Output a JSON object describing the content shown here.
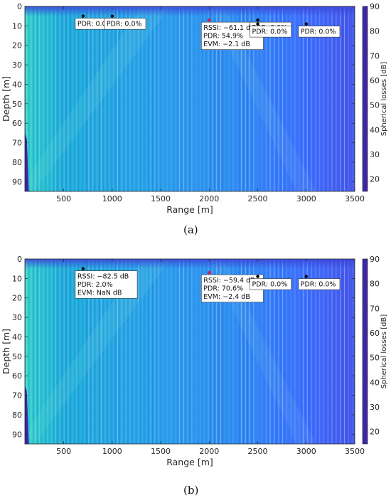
{
  "colormap": [
    "#3e26a8",
    "#4746eb",
    "#3e70ff",
    "#2d96f1",
    "#1eaed9",
    "#13beb5",
    "#45c88d",
    "#8fca5c",
    "#d2bb3a",
    "#fcce2e",
    "#f8fa0d"
  ],
  "marker_colors": {
    "normal": "#000000",
    "highlighted": "#d81b38"
  },
  "chart_data": [
    {
      "type": "heatmap",
      "panel_caption": "(a)",
      "xlabel": "Range [m]",
      "ylabel": "Depth [m]",
      "colorbar_label": "Spherical losses [dB]",
      "xlim": [
        100,
        3500
      ],
      "ylim": [
        0,
        95
      ],
      "y_reversed": true,
      "clim": [
        15,
        90
      ],
      "xticks": [
        500,
        1000,
        1500,
        2000,
        2500,
        3000,
        3500
      ],
      "yticks": [
        0,
        10,
        20,
        30,
        40,
        50,
        60,
        70,
        80,
        90
      ],
      "cticks": [
        20,
        30,
        40,
        50,
        60,
        70,
        80,
        90
      ],
      "grid": false,
      "points": [
        {
          "x": 700,
          "y": 5,
          "highlight": false,
          "label_lines": [
            "PDR: 0.0%"
          ]
        },
        {
          "x": 1000,
          "y": 5,
          "highlight": false,
          "label_lines": [
            "PDR: 0.0%"
          ]
        },
        {
          "x": 2000,
          "y": 7,
          "highlight": true,
          "label_lines": [
            "RSSI: −61.1 dB",
            "PDR: 54.9%",
            "EVM: −2.1 dB"
          ]
        },
        {
          "x": 2500,
          "y": 7,
          "highlight": false,
          "label_lines": [
            "PDR: 0.0%"
          ]
        },
        {
          "x": 2500,
          "y": 9,
          "highlight": false,
          "label_lines": [
            "PDR: 0.0%"
          ]
        },
        {
          "x": 3000,
          "y": 9,
          "highlight": false,
          "label_lines": [
            "PDR: 0.0%"
          ]
        }
      ]
    },
    {
      "type": "heatmap",
      "panel_caption": "(b)",
      "xlabel": "Range [m]",
      "ylabel": "Depth [m]",
      "colorbar_label": "Spherical losses [dB]",
      "xlim": [
        100,
        3500
      ],
      "ylim": [
        0,
        95
      ],
      "y_reversed": true,
      "clim": [
        15,
        90
      ],
      "xticks": [
        500,
        1000,
        1500,
        2000,
        2500,
        3000,
        3500
      ],
      "yticks": [
        0,
        10,
        20,
        30,
        40,
        50,
        60,
        70,
        80,
        90
      ],
      "cticks": [
        20,
        30,
        40,
        50,
        60,
        70,
        80,
        90
      ],
      "grid": false,
      "points": [
        {
          "x": 700,
          "y": 5,
          "highlight": false,
          "label_lines": [
            "RSSI: −82.5 dB",
            "PDR: 2.0%",
            "EVM: NaN dB"
          ]
        },
        {
          "x": 2000,
          "y": 7,
          "highlight": true,
          "label_lines": [
            "RSSI: −59.4 dB",
            "PDR: 70.6%",
            "EVM: −2.4 dB"
          ]
        },
        {
          "x": 2500,
          "y": 9,
          "highlight": false,
          "label_lines": [
            "PDR: 0.0%"
          ]
        },
        {
          "x": 3000,
          "y": 9,
          "highlight": false,
          "label_lines": [
            "PDR: 0.0%"
          ]
        }
      ]
    }
  ]
}
